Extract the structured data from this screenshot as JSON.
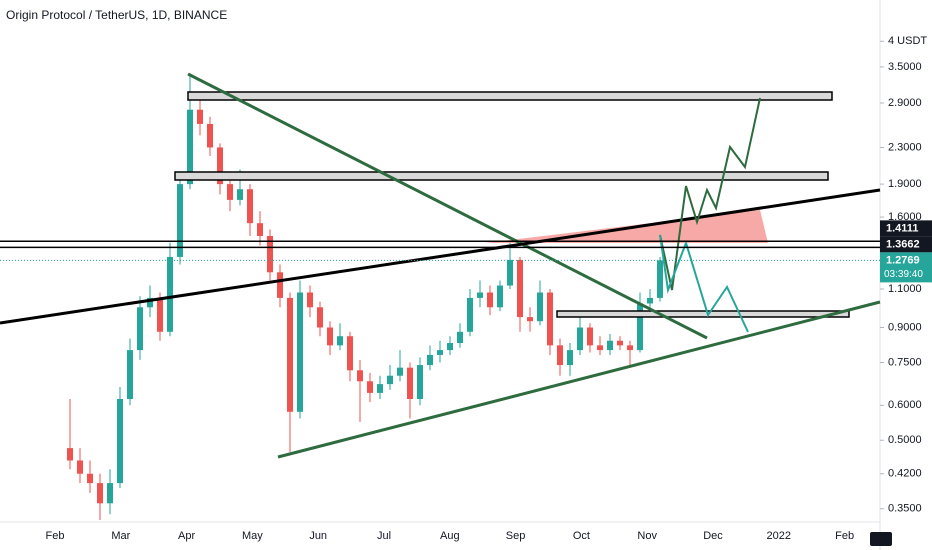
{
  "chart_data": {
    "type": "candlestick",
    "title": "Origin Protocol / TetherUS, 1D, BINANCE",
    "log_scale": true,
    "ylim": [
      0.33,
      4.96
    ],
    "yticks": [
      {
        "value": 0.35,
        "label": "0.3500"
      },
      {
        "value": 0.42,
        "label": "0.4200"
      },
      {
        "value": 0.5,
        "label": "0.5000"
      },
      {
        "value": 0.6,
        "label": "0.6000"
      },
      {
        "value": 0.75,
        "label": "0.7500"
      },
      {
        "value": 0.9,
        "label": "0.9000"
      },
      {
        "value": 1.1,
        "label": "1.1000"
      },
      {
        "value": 1.6,
        "label": "1.6000"
      },
      {
        "value": 1.9,
        "label": "1.9000"
      },
      {
        "value": 2.3,
        "label": "2.3000"
      },
      {
        "value": 2.9,
        "label": "2.9000"
      },
      {
        "value": 3.5,
        "label": "3.5000"
      },
      {
        "value": 4,
        "label": "4 USDT"
      }
    ],
    "xtick_labels": [
      "Feb",
      "Mar",
      "Apr",
      "May",
      "Jun",
      "Jul",
      "Aug",
      "Sep",
      "Oct",
      "Nov",
      "Dec",
      "2022",
      "Feb"
    ],
    "up_color": "#26a69a",
    "down_color": "#ef5350",
    "price_lines": [
      1.4111,
      1.3662
    ],
    "countdown": "03:39:40",
    "candles": {
      "open": [
        0.48,
        0.45,
        0.42,
        0.4,
        0.36,
        0.4,
        0.62,
        0.8,
        1.0,
        1.05,
        0.88,
        1.3,
        1.9,
        2.8,
        2.6,
        2.3,
        1.9,
        1.75,
        1.85,
        1.55,
        1.45,
        1.2,
        1.05,
        0.58,
        1.08,
        1.0,
        0.9,
        0.82,
        0.86,
        0.72,
        0.68,
        0.64,
        0.67,
        0.7,
        0.73,
        0.62,
        0.74,
        0.78,
        0.8,
        0.83,
        0.88,
        1.05,
        1.08,
        1.0,
        1.12,
        1.28,
        0.95,
        0.93,
        1.08,
        0.82,
        0.74,
        0.8,
        0.9,
        0.82,
        0.8,
        0.84,
        0.82,
        0.8,
        1.02,
        1.05
      ],
      "high": [
        0.62,
        0.48,
        0.45,
        0.42,
        0.43,
        0.66,
        0.85,
        1.06,
        1.12,
        1.08,
        1.4,
        2.0,
        3.35,
        3.0,
        2.7,
        2.35,
        2.0,
        2.05,
        1.9,
        1.65,
        1.5,
        1.25,
        1.08,
        1.15,
        1.12,
        1.03,
        0.93,
        0.92,
        0.88,
        0.76,
        0.71,
        0.7,
        0.74,
        0.8,
        0.75,
        0.77,
        0.82,
        0.84,
        0.86,
        0.92,
        1.1,
        1.15,
        1.12,
        1.15,
        1.4,
        1.3,
        1.0,
        1.15,
        1.1,
        0.85,
        0.83,
        0.95,
        0.92,
        0.86,
        0.87,
        0.86,
        0.84,
        1.08,
        1.1,
        1.3
      ],
      "low": [
        0.43,
        0.4,
        0.38,
        0.33,
        0.34,
        0.39,
        0.6,
        0.76,
        0.95,
        0.84,
        0.86,
        1.25,
        1.85,
        2.45,
        2.2,
        1.8,
        1.65,
        1.7,
        1.45,
        1.38,
        1.15,
        1.0,
        0.47,
        0.56,
        0.95,
        0.86,
        0.78,
        0.8,
        0.68,
        0.55,
        0.61,
        0.62,
        0.65,
        0.68,
        0.56,
        0.6,
        0.72,
        0.75,
        0.78,
        0.81,
        0.86,
        1.0,
        0.96,
        0.98,
        1.1,
        0.88,
        0.88,
        0.91,
        0.78,
        0.7,
        0.7,
        0.78,
        0.79,
        0.78,
        0.78,
        0.8,
        0.73,
        0.79,
        0.98,
        1.03
      ],
      "close": [
        0.45,
        0.42,
        0.4,
        0.36,
        0.4,
        0.62,
        0.8,
        1.0,
        1.05,
        0.88,
        1.3,
        1.9,
        2.8,
        2.6,
        2.3,
        1.9,
        1.75,
        1.85,
        1.55,
        1.45,
        1.2,
        1.05,
        0.58,
        1.08,
        1.0,
        0.9,
        0.82,
        0.86,
        0.72,
        0.68,
        0.64,
        0.67,
        0.7,
        0.73,
        0.62,
        0.74,
        0.78,
        0.8,
        0.83,
        0.88,
        1.05,
        1.08,
        1.0,
        1.12,
        1.28,
        0.95,
        0.93,
        1.08,
        0.82,
        0.74,
        0.8,
        0.9,
        0.82,
        0.8,
        0.84,
        0.82,
        0.8,
        1.02,
        1.05,
        1.2769
      ]
    }
  }
}
